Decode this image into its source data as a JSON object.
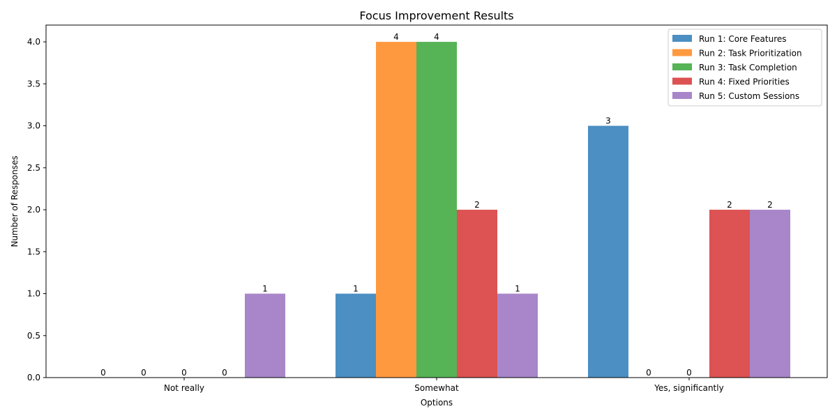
{
  "chart_data": {
    "type": "bar",
    "title": "Focus Improvement Results",
    "xlabel": "Options",
    "ylabel": "Number of Responses",
    "categories": [
      "Not really",
      "Somewhat",
      "Yes, significantly"
    ],
    "ylim": [
      0,
      4.2
    ],
    "yticks": [
      "0.0",
      "0.5",
      "1.0",
      "1.5",
      "2.0",
      "2.5",
      "3.0",
      "3.5",
      "4.0"
    ],
    "grid": false,
    "legend_position": "top-right",
    "series": [
      {
        "name": "Run 1: Core Features",
        "color": "#4b8fc3",
        "values": [
          0,
          1,
          3
        ]
      },
      {
        "name": "Run 2: Task Prioritization",
        "color": "#ff993f",
        "values": [
          0,
          4,
          0
        ]
      },
      {
        "name": "Run 3: Task Completion",
        "color": "#56b356",
        "values": [
          0,
          4,
          0
        ]
      },
      {
        "name": "Run 4: Fixed Priorities",
        "color": "#dd5252",
        "values": [
          0,
          2,
          2
        ]
      },
      {
        "name": "Run 5: Custom Sessions",
        "color": "#a886c9",
        "values": [
          1,
          1,
          2
        ]
      }
    ]
  }
}
